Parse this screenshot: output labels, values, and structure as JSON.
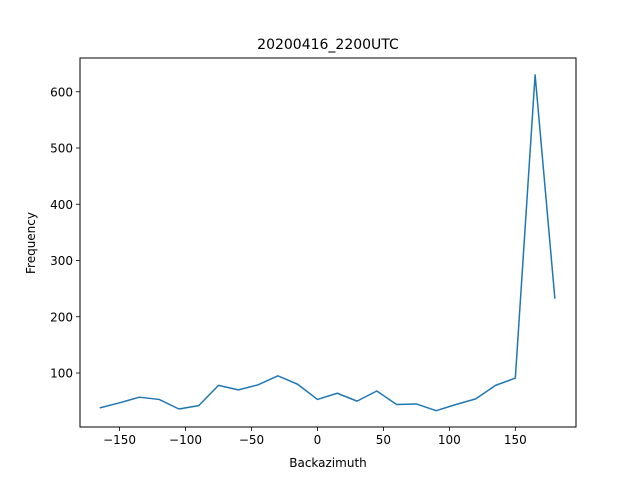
{
  "chart_data": {
    "type": "line",
    "title": "20200416_2200UTC",
    "xlabel": "Backazimuth",
    "ylabel": "Frequency",
    "xlim": [
      -180,
      196
    ],
    "ylim": [
      4,
      660
    ],
    "x_ticks": [
      -150,
      -100,
      -50,
      0,
      50,
      100,
      150
    ],
    "x_tick_labels": [
      "−150",
      "−100",
      "−50",
      "0",
      "50",
      "100",
      "150"
    ],
    "y_ticks": [
      100,
      200,
      300,
      400,
      500,
      600
    ],
    "y_tick_labels": [
      "100",
      "200",
      "300",
      "400",
      "500",
      "600"
    ],
    "grid": false,
    "series": [
      {
        "color": "#1f77b4",
        "x": [
          -165,
          -150,
          -135,
          -120,
          -105,
          -90,
          -75,
          -60,
          -45,
          -30,
          -15,
          0,
          15,
          30,
          45,
          60,
          75,
          90,
          105,
          120,
          135,
          150,
          165,
          180
        ],
        "y": [
          38,
          47,
          57,
          53,
          36,
          42,
          78,
          70,
          79,
          95,
          80,
          53,
          64,
          50,
          68,
          44,
          45,
          33,
          44,
          54,
          78,
          91,
          630,
          232
        ]
      }
    ]
  }
}
